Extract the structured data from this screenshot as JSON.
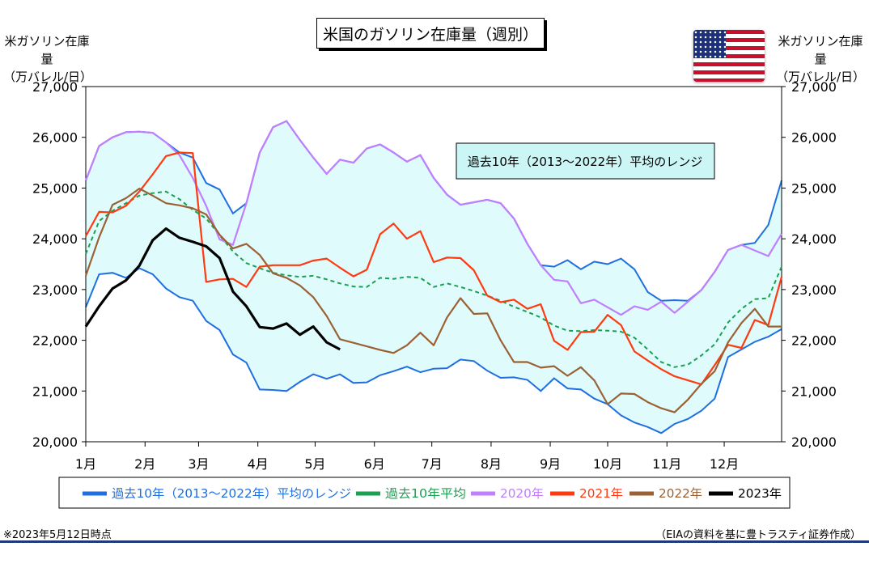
{
  "title": "米国のガソリン在庫量（週別）",
  "left_axis_title": [
    "米ガソリン在庫量",
    "（万バレル/日）"
  ],
  "right_axis_title": [
    "米ガソリン在庫量",
    "（万バレル/日）"
  ],
  "flag_icon": "us-flag-icon",
  "range_annotation": "過去10年（2013～2022年）平均のレンジ",
  "footnote_left": "※2023年5月12日時点",
  "footnote_right": "（EIAの資料を基に豊トラスティ証券作成）",
  "colors": {
    "range_fill": "#e0fbfb",
    "range_line": "#1f6fe0",
    "avg": "#1aa050",
    "y2020": "#bf7fff",
    "y2021": "#ff3a10",
    "y2022": "#9a6234",
    "y2023": "#000000",
    "annotation_bg": "#ccf6f6"
  },
  "chart_data": {
    "type": "line",
    "title": "米国のガソリン在庫量（週別）",
    "ylabel": "米ガソリン在庫量（万バレル/日）",
    "ylim": [
      20000,
      27000
    ],
    "yticks": [
      20000,
      21000,
      22000,
      23000,
      24000,
      25000,
      26000,
      27000
    ],
    "ytick_labels": [
      "20,000",
      "21,000",
      "22,000",
      "23,000",
      "24,000",
      "25,000",
      "26,000",
      "27,000"
    ],
    "xlim": [
      0,
      52
    ],
    "month_labels": [
      "1月",
      "2月",
      "3月",
      "4月",
      "5月",
      "6月",
      "7月",
      "8月",
      "9月",
      "10月",
      "11月",
      "12月"
    ],
    "grid": false,
    "legend_position": "bottom",
    "range": {
      "name": "過去10年（2013～2022年）平均のレンジ",
      "x_max": [
        0,
        1,
        2,
        3,
        4,
        5,
        6,
        7,
        8,
        9,
        10,
        11,
        12,
        13,
        14,
        15,
        16,
        17,
        18,
        19,
        20,
        21,
        22,
        23,
        24,
        25,
        26,
        27,
        28,
        29,
        30,
        31,
        32,
        33,
        34,
        35,
        36,
        37,
        38,
        39,
        40,
        41,
        42,
        43,
        44,
        45,
        46,
        47,
        48,
        49,
        50,
        51,
        52
      ],
      "max": [
        25150,
        25830,
        26000,
        26100,
        26110,
        26090,
        25900,
        25700,
        25600,
        25100,
        24970,
        24500,
        24700,
        25700,
        26200,
        26320,
        25950,
        25600,
        25280,
        25560,
        25500,
        25780,
        25860,
        25700,
        25520,
        25650,
        25200,
        24870,
        24670,
        24720,
        24770,
        24700,
        24400,
        23900,
        23480,
        23450,
        23580,
        23400,
        23550,
        23500,
        23610,
        23400,
        22950,
        22780,
        22790,
        22780,
        22990,
        23350,
        23780,
        23880,
        23920,
        24270,
        25150
      ],
      "x_min": [
        0,
        1,
        2,
        3,
        4,
        5,
        6,
        7,
        8,
        9,
        10,
        11,
        12,
        13,
        14,
        15,
        16,
        17,
        18,
        19,
        20,
        21,
        22,
        23,
        24,
        25,
        26,
        27,
        28,
        29,
        30,
        31,
        32,
        33,
        34,
        35,
        36,
        37,
        38,
        39,
        40,
        41,
        42,
        43,
        44,
        45,
        46,
        47,
        48,
        49,
        50,
        51,
        52
      ],
      "min": [
        22650,
        23300,
        23330,
        23230,
        23420,
        23300,
        23020,
        22850,
        22780,
        22380,
        22200,
        21720,
        21560,
        21030,
        21020,
        21000,
        21180,
        21330,
        21240,
        21330,
        21160,
        21170,
        21310,
        21390,
        21480,
        21370,
        21440,
        21450,
        21620,
        21590,
        21400,
        21260,
        21270,
        21220,
        21000,
        21250,
        21050,
        21030,
        20850,
        20740,
        20520,
        20380,
        20290,
        20170,
        20350,
        20450,
        20610,
        20850,
        21670,
        21820,
        21970,
        22070,
        22220
      ]
    },
    "series": [
      {
        "name": "過去10年平均",
        "x": [
          0,
          1,
          2,
          3,
          4,
          5,
          6,
          7,
          8,
          9,
          10,
          11,
          12,
          13,
          14,
          15,
          16,
          17,
          18,
          19,
          20,
          21,
          22,
          23,
          24,
          25,
          26,
          27,
          28,
          29,
          30,
          31,
          32,
          33,
          34,
          35,
          36,
          37,
          38,
          39,
          40,
          41,
          42,
          43,
          44,
          45,
          46,
          47,
          48,
          49,
          50,
          51,
          52
        ],
        "values": [
          23700,
          24350,
          24550,
          24700,
          24850,
          24900,
          24930,
          24780,
          24570,
          24400,
          24070,
          23750,
          23520,
          23420,
          23330,
          23280,
          23250,
          23270,
          23200,
          23120,
          23060,
          23050,
          23230,
          23210,
          23250,
          23230,
          23050,
          23120,
          23050,
          22970,
          22880,
          22780,
          22660,
          22560,
          22450,
          22290,
          22190,
          22180,
          22200,
          22190,
          22170,
          22050,
          21820,
          21570,
          21470,
          21520,
          21700,
          21920,
          22350,
          22620,
          22810,
          22830,
          23450
        ]
      },
      {
        "name": "2020年",
        "x": [
          0,
          1,
          2,
          3,
          4,
          5,
          6,
          7,
          8,
          9,
          10,
          11,
          12,
          13,
          14,
          15,
          16,
          17,
          18,
          19,
          20,
          21,
          22,
          23,
          24,
          25,
          26,
          27,
          28,
          29,
          30,
          31,
          32,
          33,
          34,
          35,
          36,
          37,
          38,
          39,
          40,
          41,
          42,
          43,
          44,
          45,
          46,
          47,
          48,
          49,
          50,
          51,
          52
        ],
        "values": [
          25150,
          25830,
          26000,
          26100,
          26110,
          26090,
          25900,
          25650,
          25200,
          24650,
          23990,
          23880,
          24700,
          25700,
          26200,
          26320,
          25950,
          25600,
          25280,
          25560,
          25500,
          25780,
          25860,
          25700,
          25520,
          25650,
          25200,
          24870,
          24670,
          24720,
          24770,
          24700,
          24400,
          23900,
          23480,
          23190,
          23160,
          22730,
          22800,
          22650,
          22500,
          22670,
          22600,
          22760,
          22540,
          22760,
          22990,
          23350,
          23780,
          23880,
          23770,
          23660,
          24100
        ]
      },
      {
        "name": "2021年",
        "x": [
          0,
          1,
          2,
          3,
          4,
          5,
          6,
          7,
          8,
          9,
          10,
          11,
          12,
          13,
          14,
          15,
          16,
          17,
          18,
          19,
          20,
          21,
          22,
          23,
          24,
          25,
          26,
          27,
          28,
          29,
          30,
          31,
          32,
          33,
          34,
          35,
          36,
          37,
          38,
          39,
          40,
          41,
          42,
          43,
          44,
          45,
          46,
          47,
          48,
          49,
          50,
          51,
          52
        ],
        "values": [
          24050,
          24530,
          24520,
          24650,
          24930,
          25270,
          25630,
          25700,
          25690,
          23150,
          23200,
          23210,
          23050,
          23450,
          23480,
          23480,
          23480,
          23570,
          23610,
          23430,
          23260,
          23390,
          24090,
          24300,
          24000,
          24150,
          23540,
          23630,
          23620,
          23380,
          22880,
          22750,
          22800,
          22620,
          22710,
          21990,
          21810,
          22160,
          22170,
          22500,
          22300,
          21780,
          21600,
          21430,
          21290,
          21210,
          21130,
          21510,
          21910,
          21850,
          22400,
          22300,
          23250
        ]
      },
      {
        "name": "2022年",
        "x": [
          0,
          1,
          2,
          3,
          4,
          5,
          6,
          7,
          8,
          9,
          10,
          11,
          12,
          13,
          14,
          15,
          16,
          17,
          18,
          19,
          20,
          21,
          22,
          23,
          24,
          25,
          26,
          27,
          28,
          29,
          30,
          31,
          32,
          33,
          34,
          35,
          36,
          37,
          38,
          39,
          40,
          41,
          42,
          43,
          44,
          45,
          46,
          47,
          48,
          49,
          50,
          51,
          52
        ],
        "values": [
          23270,
          24030,
          24670,
          24800,
          24990,
          24850,
          24700,
          24660,
          24600,
          24480,
          24080,
          23810,
          23900,
          23680,
          23320,
          23230,
          23080,
          22850,
          22480,
          22020,
          21950,
          21880,
          21810,
          21750,
          21900,
          22150,
          21900,
          22450,
          22830,
          22520,
          22530,
          22000,
          21570,
          21570,
          21460,
          21490,
          21300,
          21470,
          21210,
          20740,
          20950,
          20940,
          20780,
          20660,
          20580,
          20830,
          21140,
          21390,
          21960,
          22340,
          22620,
          22270,
          22270
        ]
      },
      {
        "name": "2023年",
        "x": [
          0,
          1,
          2,
          3,
          4,
          5,
          6,
          7,
          8,
          9,
          10,
          11,
          12,
          13,
          14,
          15,
          16,
          17,
          18,
          19
        ],
        "values": [
          22270,
          22670,
          23020,
          23180,
          23470,
          23970,
          24200,
          24020,
          23940,
          23850,
          23620,
          22960,
          22670,
          22260,
          22230,
          22330,
          22110,
          22270,
          21960,
          21820
        ]
      }
    ]
  }
}
